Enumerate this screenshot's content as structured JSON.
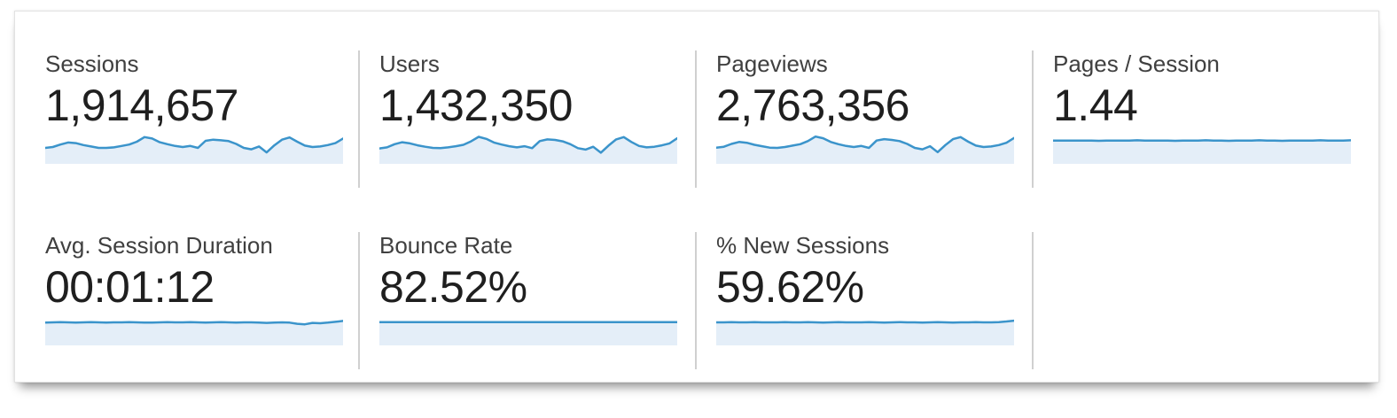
{
  "colors": {
    "spark_line": "#3b94cb",
    "spark_fill": "#e4eef8",
    "divider": "#d0d0d0",
    "label_text": "#404040",
    "value_text": "#1f1f1f",
    "panel_bg": "#ffffff"
  },
  "metrics": [
    {
      "id": "sessions",
      "label": "Sessions",
      "value": "1,914,657",
      "spark": [
        50,
        53,
        62,
        69,
        67,
        60,
        55,
        50,
        50,
        52,
        57,
        62,
        72,
        88,
        83,
        70,
        63,
        57,
        53,
        57,
        50,
        75,
        79,
        77,
        74,
        64,
        50,
        45,
        55,
        34,
        59,
        79,
        87,
        72,
        58,
        53,
        55,
        60,
        67,
        83
      ]
    },
    {
      "id": "users",
      "label": "Users",
      "value": "1,432,350",
      "spark": [
        48,
        52,
        63,
        70,
        66,
        59,
        54,
        50,
        49,
        52,
        56,
        61,
        73,
        89,
        82,
        69,
        62,
        56,
        52,
        56,
        49,
        74,
        80,
        78,
        73,
        63,
        49,
        44,
        54,
        33,
        58,
        80,
        88,
        71,
        57,
        52,
        54,
        59,
        66,
        84
      ]
    },
    {
      "id": "pageviews",
      "label": "Pageviews",
      "value": "2,763,356",
      "spark": [
        51,
        54,
        64,
        71,
        68,
        61,
        56,
        51,
        50,
        53,
        58,
        63,
        74,
        90,
        84,
        71,
        63,
        57,
        53,
        57,
        50,
        76,
        81,
        78,
        74,
        64,
        50,
        45,
        56,
        35,
        60,
        81,
        88,
        72,
        58,
        53,
        55,
        60,
        68,
        85
      ]
    },
    {
      "id": "pages-per-session",
      "label": "Pages / Session",
      "value": "1.44",
      "spark": [
        76,
        76,
        76,
        76,
        76,
        76,
        75,
        76,
        76,
        76,
        76,
        77,
        76,
        76,
        76,
        76,
        75,
        76,
        76,
        76,
        77,
        76,
        76,
        75,
        76,
        76,
        76,
        77,
        76,
        76,
        75,
        76,
        76,
        76,
        76,
        77,
        76,
        76,
        76,
        77
      ]
    },
    {
      "id": "avg-session-duration",
      "label": "Avg. Session Duration",
      "value": "00:01:12",
      "spark": [
        74,
        75,
        76,
        75,
        74,
        75,
        76,
        75,
        74,
        75,
        75,
        76,
        75,
        74,
        74,
        75,
        76,
        75,
        75,
        76,
        75,
        74,
        75,
        76,
        75,
        74,
        75,
        75,
        74,
        73,
        74,
        75,
        74,
        70,
        68,
        73,
        72,
        74,
        77,
        80
      ]
    },
    {
      "id": "bounce-rate",
      "label": "Bounce Rate",
      "value": "82.52%",
      "spark": [
        76,
        76,
        76,
        76,
        76,
        76,
        76,
        76,
        76,
        76,
        76,
        76,
        76,
        76,
        76,
        76,
        76,
        76,
        76,
        76,
        76,
        76,
        76,
        76,
        76,
        76,
        76,
        76,
        76,
        76,
        76,
        76,
        76,
        76,
        76,
        76,
        76,
        76,
        76,
        76
      ]
    },
    {
      "id": "new-sessions",
      "label": "% New Sessions",
      "value": "59.62%",
      "spark": [
        75,
        75,
        76,
        75,
        75,
        76,
        75,
        75,
        75,
        76,
        75,
        75,
        76,
        75,
        74,
        75,
        76,
        75,
        75,
        75,
        76,
        75,
        74,
        75,
        76,
        75,
        75,
        74,
        75,
        76,
        75,
        74,
        75,
        75,
        76,
        75,
        75,
        76,
        78,
        81
      ]
    }
  ]
}
